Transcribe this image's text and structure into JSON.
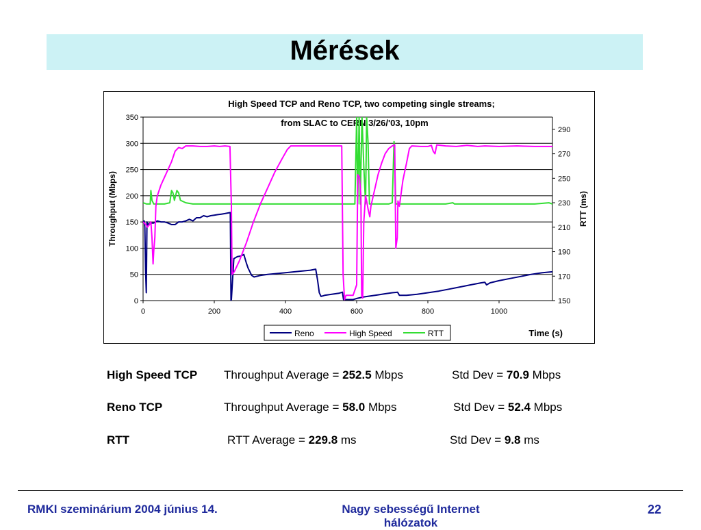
{
  "slide": {
    "title": "Mérések",
    "footer_left": "RMKI szeminárium 2004 június 14.",
    "footer_mid": "Nagy sebességű Internet hálózatok",
    "page_number": "22",
    "colors": {
      "title_bar": "#ccf2f5",
      "footer_text": "#1f2a9c"
    }
  },
  "stats": [
    {
      "label": "High Speed TCP",
      "metric": "Throughput Average = ",
      "avg": "252.5",
      "avg_unit": " Mbps",
      "std_label": "Std Dev = ",
      "std": "70.9",
      "std_unit": " Mbps"
    },
    {
      "label": "Reno TCP",
      "metric": "Throughput Average = ",
      "avg": "58.0",
      "avg_unit": " Mbps",
      "std_label": "Std Dev = ",
      "std": "52.4",
      "std_unit": " Mbps"
    },
    {
      "label": "RTT",
      "metric": "RTT Average = ",
      "avg": "229.8",
      "avg_unit": " ms",
      "std_label": "Std Dev = ",
      "std": "9.8",
      "std_unit": " ms"
    }
  ],
  "chart_data": {
    "type": "line",
    "title_line1": "High Speed TCP and Reno TCP, two competing single streams;",
    "title_line2": "from SLAC to CERN 3/26/'03, 10pm",
    "xlabel": "Time (s)",
    "ylabel": "Throughput (Mbps)",
    "y2label": "RTT (ms)",
    "xlim": [
      0,
      1150
    ],
    "ylim": [
      0,
      350
    ],
    "y2lim": [
      150,
      300
    ],
    "x_ticks": [
      0,
      200,
      400,
      600,
      800,
      1000
    ],
    "y_ticks": [
      0,
      50,
      100,
      150,
      200,
      250,
      300,
      350
    ],
    "y2_ticks": [
      150,
      170,
      190,
      210,
      230,
      250,
      270,
      290
    ],
    "grid": "horizontal",
    "legend_position": "bottom",
    "series": [
      {
        "name": "Reno",
        "axis": "left",
        "color": "#000080",
        "points": [
          [
            0,
            150
          ],
          [
            3,
            152
          ],
          [
            5,
            140
          ],
          [
            7,
            60
          ],
          [
            9,
            15
          ],
          [
            11,
            150
          ],
          [
            13,
            145
          ],
          [
            20,
            148
          ],
          [
            30,
            148
          ],
          [
            40,
            152
          ],
          [
            50,
            150
          ],
          [
            60,
            150
          ],
          [
            70,
            148
          ],
          [
            80,
            145
          ],
          [
            90,
            145
          ],
          [
            100,
            150
          ],
          [
            110,
            150
          ],
          [
            120,
            152
          ],
          [
            130,
            155
          ],
          [
            140,
            152
          ],
          [
            150,
            158
          ],
          [
            160,
            158
          ],
          [
            170,
            162
          ],
          [
            180,
            160
          ],
          [
            190,
            162
          ],
          [
            200,
            163
          ],
          [
            210,
            164
          ],
          [
            220,
            165
          ],
          [
            230,
            166
          ],
          [
            245,
            168
          ],
          [
            246,
            95
          ],
          [
            247,
            0
          ],
          [
            248,
            2
          ],
          [
            255,
            80
          ],
          [
            265,
            84
          ],
          [
            275,
            85
          ],
          [
            283,
            88
          ],
          [
            290,
            72
          ],
          [
            295,
            62
          ],
          [
            305,
            48
          ],
          [
            312,
            45
          ],
          [
            330,
            48
          ],
          [
            350,
            50
          ],
          [
            380,
            52
          ],
          [
            410,
            54
          ],
          [
            440,
            56
          ],
          [
            470,
            58
          ],
          [
            485,
            60
          ],
          [
            490,
            40
          ],
          [
            495,
            15
          ],
          [
            500,
            8
          ],
          [
            510,
            10
          ],
          [
            530,
            12
          ],
          [
            550,
            14
          ],
          [
            560,
            16
          ],
          [
            563,
            2
          ],
          [
            590,
            2
          ],
          [
            600,
            4
          ],
          [
            620,
            7
          ],
          [
            640,
            9
          ],
          [
            660,
            11
          ],
          [
            680,
            13
          ],
          [
            700,
            15
          ],
          [
            715,
            16
          ],
          [
            720,
            10
          ],
          [
            740,
            10
          ],
          [
            770,
            12
          ],
          [
            800,
            15
          ],
          [
            830,
            18
          ],
          [
            860,
            22
          ],
          [
            890,
            26
          ],
          [
            920,
            30
          ],
          [
            950,
            34
          ],
          [
            960,
            35
          ],
          [
            965,
            30
          ],
          [
            975,
            34
          ],
          [
            1000,
            38
          ],
          [
            1030,
            42
          ],
          [
            1060,
            46
          ],
          [
            1090,
            50
          ],
          [
            1120,
            53
          ],
          [
            1150,
            55
          ]
        ]
      },
      {
        "name": "High Speed",
        "axis": "left",
        "color": "#ff00ff",
        "points": [
          [
            0,
            150
          ],
          [
            8,
            145
          ],
          [
            12,
            140
          ],
          [
            18,
            145
          ],
          [
            22,
            150
          ],
          [
            25,
            120
          ],
          [
            28,
            70
          ],
          [
            30,
            95
          ],
          [
            33,
            120
          ],
          [
            36,
            180
          ],
          [
            40,
            200
          ],
          [
            50,
            220
          ],
          [
            60,
            235
          ],
          [
            70,
            250
          ],
          [
            80,
            265
          ],
          [
            90,
            285
          ],
          [
            100,
            292
          ],
          [
            110,
            290
          ],
          [
            120,
            295
          ],
          [
            140,
            295
          ],
          [
            160,
            294
          ],
          [
            180,
            294
          ],
          [
            200,
            295
          ],
          [
            215,
            294
          ],
          [
            230,
            295
          ],
          [
            244,
            294
          ],
          [
            248,
            180
          ],
          [
            250,
            50
          ],
          [
            256,
            55
          ],
          [
            270,
            75
          ],
          [
            290,
            110
          ],
          [
            310,
            150
          ],
          [
            330,
            185
          ],
          [
            350,
            215
          ],
          [
            370,
            245
          ],
          [
            390,
            270
          ],
          [
            405,
            288
          ],
          [
            415,
            295
          ],
          [
            440,
            295
          ],
          [
            470,
            295
          ],
          [
            500,
            295
          ],
          [
            530,
            295
          ],
          [
            558,
            295
          ],
          [
            562,
            50
          ],
          [
            566,
            2
          ],
          [
            570,
            10
          ],
          [
            590,
            10
          ],
          [
            600,
            30
          ],
          [
            603,
            240
          ],
          [
            608,
            235
          ],
          [
            612,
            200
          ],
          [
            614,
            10
          ],
          [
            617,
            5
          ],
          [
            620,
            150
          ],
          [
            625,
            200
          ],
          [
            628,
            190
          ],
          [
            632,
            175
          ],
          [
            637,
            160
          ],
          [
            640,
            180
          ],
          [
            650,
            210
          ],
          [
            660,
            240
          ],
          [
            670,
            262
          ],
          [
            680,
            280
          ],
          [
            690,
            290
          ],
          [
            700,
            295
          ],
          [
            707,
            297
          ],
          [
            710,
            100
          ],
          [
            714,
            120
          ],
          [
            716,
            190
          ],
          [
            720,
            180
          ],
          [
            730,
            230
          ],
          [
            740,
            262
          ],
          [
            748,
            290
          ],
          [
            755,
            295
          ],
          [
            780,
            294
          ],
          [
            800,
            294
          ],
          [
            810,
            296
          ],
          [
            815,
            285
          ],
          [
            820,
            280
          ],
          [
            825,
            297
          ],
          [
            850,
            295
          ],
          [
            880,
            294
          ],
          [
            910,
            296
          ],
          [
            940,
            294
          ],
          [
            960,
            295
          ],
          [
            1000,
            294
          ],
          [
            1050,
            295
          ],
          [
            1100,
            294
          ],
          [
            1150,
            294
          ]
        ]
      },
      {
        "name": "RTT",
        "axis": "right",
        "color": "#33dd33",
        "points": [
          [
            0,
            230
          ],
          [
            10,
            229
          ],
          [
            20,
            229
          ],
          [
            22,
            240
          ],
          [
            25,
            232
          ],
          [
            30,
            229
          ],
          [
            60,
            229
          ],
          [
            75,
            230
          ],
          [
            80,
            240
          ],
          [
            84,
            238
          ],
          [
            88,
            232
          ],
          [
            95,
            240
          ],
          [
            100,
            238
          ],
          [
            105,
            232
          ],
          [
            120,
            230
          ],
          [
            140,
            229
          ],
          [
            200,
            229
          ],
          [
            300,
            229
          ],
          [
            400,
            229
          ],
          [
            500,
            229
          ],
          [
            556,
            229
          ],
          [
            562,
            229
          ],
          [
            570,
            229
          ],
          [
            585,
            229
          ],
          [
            595,
            229
          ],
          [
            600,
            300
          ],
          [
            603,
            229
          ],
          [
            607,
            300
          ],
          [
            610,
            229
          ],
          [
            615,
            300
          ],
          [
            620,
            260
          ],
          [
            625,
            229
          ],
          [
            628,
            300
          ],
          [
            632,
            280
          ],
          [
            636,
            229
          ],
          [
            660,
            229
          ],
          [
            690,
            229
          ],
          [
            700,
            230
          ],
          [
            705,
            280
          ],
          [
            710,
            229
          ],
          [
            720,
            229
          ],
          [
            800,
            229
          ],
          [
            850,
            229
          ],
          [
            870,
            230
          ],
          [
            875,
            229
          ],
          [
            1000,
            229
          ],
          [
            1100,
            229
          ],
          [
            1140,
            230
          ],
          [
            1150,
            229
          ]
        ]
      }
    ]
  }
}
